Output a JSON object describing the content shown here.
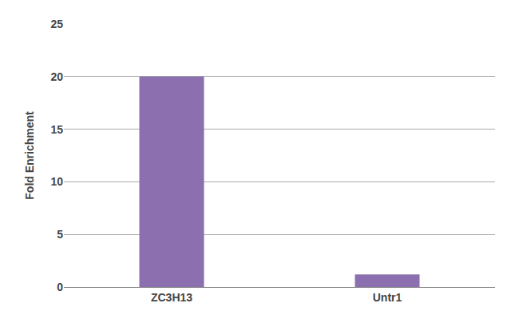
{
  "chart_data": {
    "type": "bar",
    "ylabel": "Fold Enrichment",
    "categories": [
      "ZC3H13",
      "Untr1"
    ],
    "values": [
      20,
      1.2
    ],
    "color": "#8B6FAE",
    "ylim": [
      0,
      25
    ],
    "yticks": [
      0,
      5,
      10,
      15,
      20,
      25
    ],
    "grid": true
  }
}
